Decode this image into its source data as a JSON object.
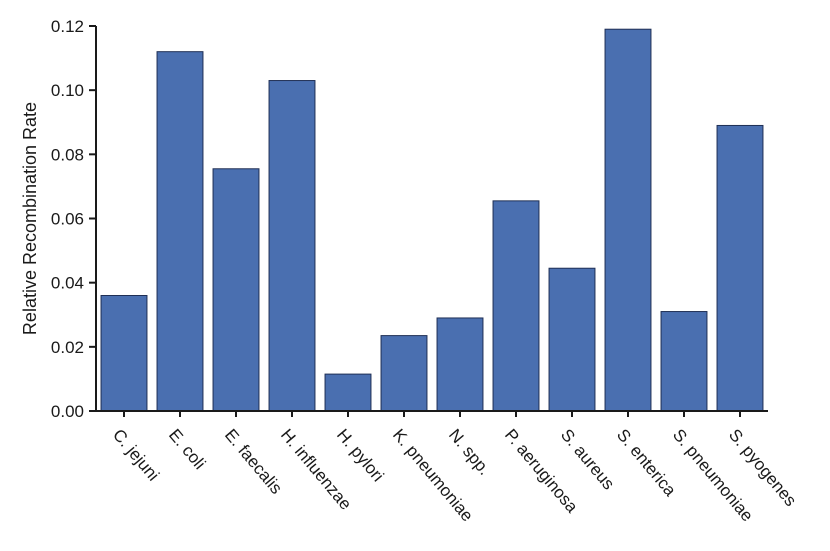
{
  "chart_data": {
    "type": "bar",
    "title": "",
    "xlabel": "",
    "ylabel": "Relative Recombination Rate",
    "ylim": [
      0,
      0.12
    ],
    "yticks": [
      "0.00",
      "0.02",
      "0.04",
      "0.06",
      "0.08",
      "0.10",
      "0.12"
    ],
    "grid": false,
    "legend": "none",
    "bar_color": "#4a6fb0",
    "bar_edge_color": "#1f2f55",
    "categories": [
      "C. jejuni",
      "E. coli",
      "E. faecalis",
      "H. influenzae",
      "H. pylori",
      "K. pneumoniae",
      "N. spp.",
      "P. aeruginosa",
      "S. aureus",
      "S. enterica",
      "S. pneumoniae",
      "S. pyogenes"
    ],
    "values": [
      0.036,
      0.112,
      0.0755,
      0.103,
      0.0115,
      0.0235,
      0.029,
      0.0655,
      0.0445,
      0.119,
      0.031,
      0.089
    ]
  }
}
